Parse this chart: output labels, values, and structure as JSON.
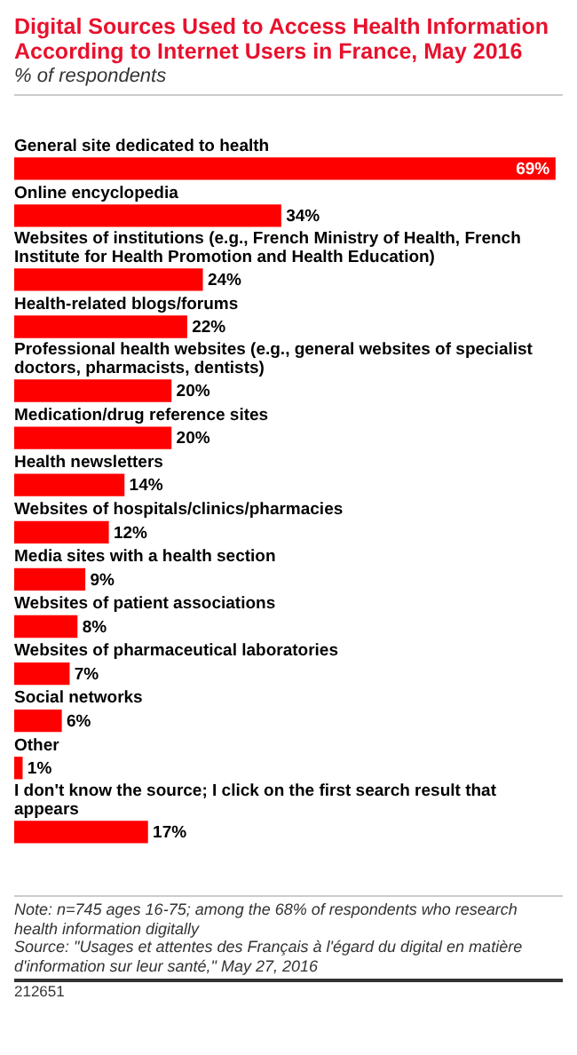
{
  "chart_data": {
    "type": "bar",
    "orientation": "horizontal",
    "title": "Digital Sources Used to Access Health Information According to Internet Users in France, May 2016",
    "subtitle": "% of respondents",
    "categories": [
      "General site dedicated to health",
      "Online encyclopedia",
      "Websites of institutions (e.g., French Ministry of Health, French Institute for Health Promotion and Health Education)",
      "Health-related blogs/forums",
      "Professional health websites (e.g., general websites of specialist doctors, pharmacists, dentists)",
      "Medication/drug reference sites",
      "Health newsletters",
      "Websites of hospitals/clinics/pharmacies",
      "Media sites with a health section",
      "Websites of patient associations",
      "Websites of pharmaceutical laboratories",
      "Social networks",
      "Other",
      "I don't know the source; I click on the first search result that appears"
    ],
    "values": [
      69,
      34,
      24,
      22,
      20,
      20,
      14,
      12,
      9,
      8,
      7,
      6,
      1,
      17
    ],
    "value_labels": [
      "69%",
      "34%",
      "24%",
      "22%",
      "20%",
      "20%",
      "14%",
      "12%",
      "9%",
      "8%",
      "7%",
      "6%",
      "1%",
      "17%"
    ],
    "color": "#ff0000",
    "legend": false,
    "annotations": [
      "Note: n=745 ages 16-75; among the 68% of respondents who research health information digitally",
      "Source: \"Usages et attentes des Français à l'égard du digital en matière d'information sur leur santé,\" May 27, 2016",
      "212651"
    ]
  }
}
